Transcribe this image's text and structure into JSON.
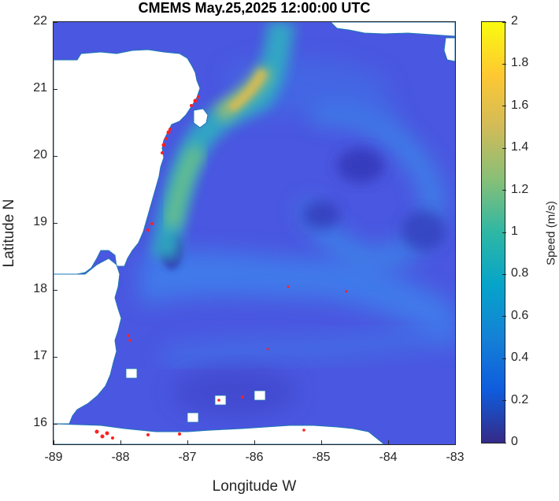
{
  "title": "CMEMS May.25,2025 12:00:00 UTC",
  "xlabel": "Longitude W",
  "ylabel": "Latitude N",
  "colorbar": {
    "label": "Speed (m/s)",
    "ticks": [
      "0",
      "0.2",
      "0.4",
      "0.6",
      "0.8",
      "1",
      "1.2",
      "1.4",
      "1.6",
      "1.8",
      "2"
    ],
    "range": [
      0,
      2
    ],
    "colormap": "parula",
    "colors": [
      "#352a87",
      "#0f5cdd",
      "#1481d6",
      "#06a4ca",
      "#2eb7a4",
      "#87bf77",
      "#d1bb59",
      "#fec832",
      "#f9fb0e"
    ]
  },
  "map": {
    "xlim": [
      -89,
      -83
    ],
    "ylim": [
      15.7,
      22
    ],
    "xticks": [
      {
        "v": -89,
        "label": "-89"
      },
      {
        "v": -88,
        "label": "-88"
      },
      {
        "v": -87,
        "label": "-87"
      },
      {
        "v": -86,
        "label": "-86"
      },
      {
        "v": -85,
        "label": "-85"
      },
      {
        "v": -84,
        "label": "-84"
      },
      {
        "v": -83,
        "label": "-83"
      }
    ],
    "yticks": [
      {
        "v": 16,
        "label": "16"
      },
      {
        "v": 17,
        "label": "17"
      },
      {
        "v": 18,
        "label": "18"
      },
      {
        "v": 19,
        "label": "19"
      },
      {
        "v": 20,
        "label": "20"
      },
      {
        "v": 21,
        "label": "21"
      },
      {
        "v": 22,
        "label": "22"
      }
    ],
    "ocean_color": "#4a57e0",
    "land_color": "#ffffff",
    "coastline_color": "#1f77b4",
    "marker_color": "#ff2020"
  }
}
